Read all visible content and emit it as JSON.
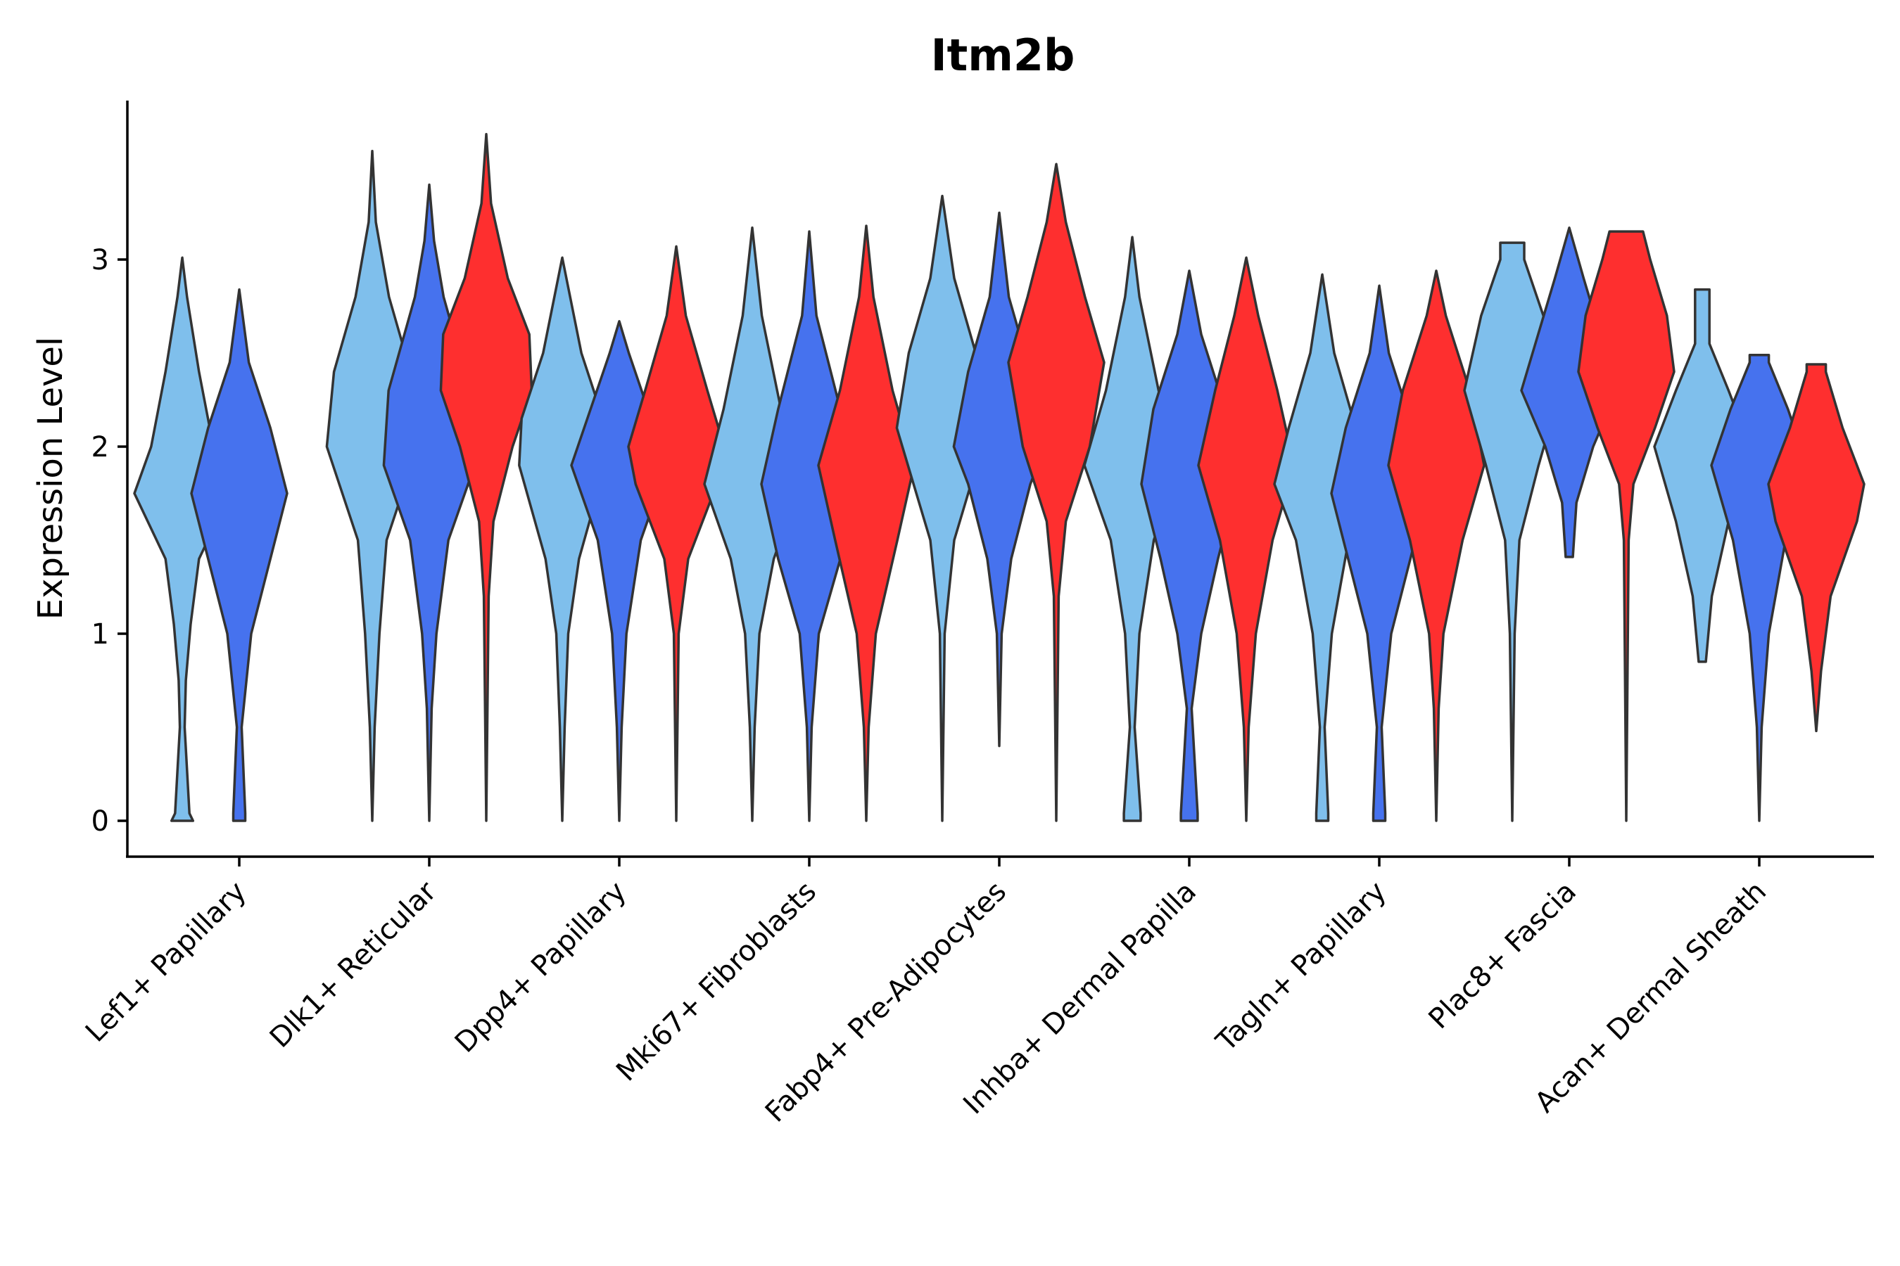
{
  "chart_data": {
    "type": "violin",
    "title": "Itm2b",
    "xlabel": "",
    "ylabel": "Expression Level",
    "ylim": [
      -0.18,
      3.85
    ],
    "yticks": [
      0,
      1,
      2,
      3
    ],
    "grid": false,
    "legend": "none",
    "series_colors": [
      "#7fbfec",
      "#4672ee",
      "#fe2f2f"
    ],
    "categories": [
      "Lef1+ Papillary",
      "Dlk1+ Reticular",
      "Dpp4+ Papillary",
      "Mki67+ Fibroblasts",
      "Fabp4+ Pre-Adipocytes",
      "Inhba+ Dermal Papilla",
      "Tagln+ Papillary",
      "Plac8+ Fascia",
      "Acan+ Dermal Sheath"
    ],
    "violins": [
      {
        "category": "Lef1+ Papillary",
        "series": 0,
        "min": 0,
        "max": 3.01,
        "peak": 1.75,
        "zero_blob": true,
        "profile": [
          [
            0,
            0.09
          ],
          [
            0.04,
            0.06
          ],
          [
            0.5,
            0.02
          ],
          [
            0.75,
            0.03
          ],
          [
            1.05,
            0.07
          ],
          [
            1.4,
            0.14
          ],
          [
            1.75,
            0.4
          ],
          [
            2.0,
            0.26
          ],
          [
            2.4,
            0.14
          ],
          [
            2.8,
            0.04
          ],
          [
            3.01,
            0
          ]
        ]
      },
      {
        "category": "Lef1+ Papillary",
        "series": 1,
        "min": 0,
        "max": 2.84,
        "peak": 1.75,
        "zero_blob": true,
        "profile": [
          [
            0,
            0.05
          ],
          [
            0.04,
            0.05
          ],
          [
            0.5,
            0.02
          ],
          [
            1.0,
            0.1
          ],
          [
            1.4,
            0.26
          ],
          [
            1.75,
            0.4
          ],
          [
            2.1,
            0.26
          ],
          [
            2.45,
            0.08
          ],
          [
            2.84,
            0
          ]
        ]
      },
      {
        "category": "Dlk1+ Reticular",
        "series": 0,
        "min": 0,
        "max": 3.58,
        "peak": 2.0,
        "zero_blob": false,
        "profile": [
          [
            0,
            0
          ],
          [
            0.5,
            0.02
          ],
          [
            1.0,
            0.06
          ],
          [
            1.5,
            0.12
          ],
          [
            2.0,
            0.38
          ],
          [
            2.4,
            0.32
          ],
          [
            2.8,
            0.14
          ],
          [
            3.2,
            0.03
          ],
          [
            3.58,
            0
          ]
        ]
      },
      {
        "category": "Dlk1+ Reticular",
        "series": 1,
        "min": 0,
        "max": 3.4,
        "peak": 1.9,
        "zero_blob": false,
        "profile": [
          [
            0,
            0
          ],
          [
            0.6,
            0.02
          ],
          [
            1.0,
            0.06
          ],
          [
            1.5,
            0.16
          ],
          [
            1.9,
            0.38
          ],
          [
            2.3,
            0.34
          ],
          [
            2.8,
            0.12
          ],
          [
            3.1,
            0.04
          ],
          [
            3.4,
            0
          ]
        ]
      },
      {
        "category": "Dlk1+ Reticular",
        "series": 2,
        "min": 0,
        "max": 3.67,
        "peak": 2.4,
        "zero_blob": false,
        "profile": [
          [
            0,
            0
          ],
          [
            1.2,
            0.02
          ],
          [
            1.6,
            0.06
          ],
          [
            2.0,
            0.22
          ],
          [
            2.3,
            0.38
          ],
          [
            2.6,
            0.36
          ],
          [
            2.9,
            0.18
          ],
          [
            3.3,
            0.04
          ],
          [
            3.67,
            0
          ]
        ]
      },
      {
        "category": "Dpp4+ Papillary",
        "series": 0,
        "min": 0,
        "max": 3.01,
        "peak": 1.9,
        "zero_blob": false,
        "profile": [
          [
            0,
            0
          ],
          [
            0.5,
            0.02
          ],
          [
            1.0,
            0.05
          ],
          [
            1.4,
            0.14
          ],
          [
            1.9,
            0.36
          ],
          [
            2.15,
            0.34
          ],
          [
            2.5,
            0.16
          ],
          [
            3.01,
            0
          ]
        ]
      },
      {
        "category": "Dpp4+ Papillary",
        "series": 1,
        "min": 0,
        "max": 2.67,
        "peak": 1.9,
        "zero_blob": false,
        "profile": [
          [
            0,
            0
          ],
          [
            0.5,
            0.02
          ],
          [
            1.0,
            0.06
          ],
          [
            1.5,
            0.18
          ],
          [
            1.9,
            0.4
          ],
          [
            2.2,
            0.24
          ],
          [
            2.5,
            0.08
          ],
          [
            2.67,
            0
          ]
        ]
      },
      {
        "category": "Dpp4+ Papillary",
        "series": 2,
        "min": 0,
        "max": 3.07,
        "peak": 2.0,
        "zero_blob": false,
        "profile": [
          [
            0,
            0
          ],
          [
            1.0,
            0.02
          ],
          [
            1.4,
            0.1
          ],
          [
            1.8,
            0.34
          ],
          [
            2.0,
            0.4
          ],
          [
            2.3,
            0.26
          ],
          [
            2.7,
            0.08
          ],
          [
            3.07,
            0
          ]
        ]
      },
      {
        "category": "Mki67+ Fibroblasts",
        "series": 0,
        "min": 0,
        "max": 3.17,
        "peak": 1.8,
        "zero_blob": false,
        "profile": [
          [
            0,
            0
          ],
          [
            0.5,
            0.02
          ],
          [
            1.0,
            0.06
          ],
          [
            1.4,
            0.18
          ],
          [
            1.8,
            0.4
          ],
          [
            2.2,
            0.24
          ],
          [
            2.7,
            0.08
          ],
          [
            3.17,
            0
          ]
        ]
      },
      {
        "category": "Mki67+ Fibroblasts",
        "series": 1,
        "min": 0,
        "max": 3.15,
        "peak": 1.8,
        "zero_blob": false,
        "profile": [
          [
            0,
            0
          ],
          [
            0.5,
            0.02
          ],
          [
            1.0,
            0.08
          ],
          [
            1.4,
            0.26
          ],
          [
            1.8,
            0.4
          ],
          [
            2.2,
            0.26
          ],
          [
            2.7,
            0.06
          ],
          [
            3.15,
            0
          ]
        ]
      },
      {
        "category": "Mki67+ Fibroblasts",
        "series": 2,
        "min": 0,
        "max": 3.18,
        "peak": 1.9,
        "zero_blob": false,
        "profile": [
          [
            0,
            0
          ],
          [
            0.5,
            0.02
          ],
          [
            1.0,
            0.08
          ],
          [
            1.5,
            0.26
          ],
          [
            1.9,
            0.4
          ],
          [
            2.3,
            0.22
          ],
          [
            2.8,
            0.06
          ],
          [
            3.18,
            0
          ]
        ]
      },
      {
        "category": "Fabp4+ Pre-Adipocytes",
        "series": 0,
        "min": 0,
        "max": 3.34,
        "peak": 2.1,
        "zero_blob": false,
        "profile": [
          [
            0,
            0
          ],
          [
            1.0,
            0.02
          ],
          [
            1.5,
            0.1
          ],
          [
            1.8,
            0.24
          ],
          [
            2.1,
            0.38
          ],
          [
            2.5,
            0.28
          ],
          [
            2.9,
            0.1
          ],
          [
            3.34,
            0
          ]
        ]
      },
      {
        "category": "Fabp4+ Pre-Adipocytes",
        "series": 1,
        "min": 0.4,
        "max": 3.25,
        "peak": 2.0,
        "zero_blob": false,
        "profile": [
          [
            0.4,
            0
          ],
          [
            1.0,
            0.02
          ],
          [
            1.4,
            0.1
          ],
          [
            1.8,
            0.26
          ],
          [
            2.0,
            0.38
          ],
          [
            2.4,
            0.26
          ],
          [
            2.8,
            0.08
          ],
          [
            3.25,
            0
          ]
        ]
      },
      {
        "category": "Fabp4+ Pre-Adipocytes",
        "series": 2,
        "min": 0,
        "max": 3.51,
        "peak": 2.45,
        "zero_blob": false,
        "profile": [
          [
            0,
            0
          ],
          [
            1.2,
            0.02
          ],
          [
            1.6,
            0.08
          ],
          [
            2.0,
            0.28
          ],
          [
            2.45,
            0.4
          ],
          [
            2.8,
            0.24
          ],
          [
            3.2,
            0.08
          ],
          [
            3.51,
            0
          ]
        ]
      },
      {
        "category": "Inhba+ Dermal Papilla",
        "series": 0,
        "min": 0,
        "max": 3.12,
        "peak": 1.9,
        "zero_blob": true,
        "profile": [
          [
            0,
            0.07
          ],
          [
            0.04,
            0.07
          ],
          [
            0.5,
            0.02
          ],
          [
            1.0,
            0.06
          ],
          [
            1.5,
            0.18
          ],
          [
            1.9,
            0.4
          ],
          [
            2.3,
            0.22
          ],
          [
            2.8,
            0.06
          ],
          [
            3.12,
            0
          ]
        ]
      },
      {
        "category": "Inhba+ Dermal Papilla",
        "series": 1,
        "min": 0,
        "max": 2.94,
        "peak": 1.8,
        "zero_blob": true,
        "profile": [
          [
            0,
            0.07
          ],
          [
            0.04,
            0.07
          ],
          [
            0.6,
            0.02
          ],
          [
            1.0,
            0.1
          ],
          [
            1.4,
            0.24
          ],
          [
            1.8,
            0.4
          ],
          [
            2.2,
            0.3
          ],
          [
            2.6,
            0.1
          ],
          [
            2.94,
            0
          ]
        ]
      },
      {
        "category": "Inhba+ Dermal Papilla",
        "series": 2,
        "min": 0,
        "max": 3.01,
        "peak": 1.9,
        "zero_blob": false,
        "profile": [
          [
            0,
            0
          ],
          [
            0.5,
            0.02
          ],
          [
            1.0,
            0.08
          ],
          [
            1.5,
            0.22
          ],
          [
            1.9,
            0.4
          ],
          [
            2.3,
            0.26
          ],
          [
            2.7,
            0.1
          ],
          [
            3.01,
            0
          ]
        ]
      },
      {
        "category": "Tagln+ Papillary",
        "series": 0,
        "min": 0,
        "max": 2.92,
        "peak": 1.8,
        "zero_blob": true,
        "profile": [
          [
            0,
            0.05
          ],
          [
            0.04,
            0.05
          ],
          [
            0.5,
            0.02
          ],
          [
            1.0,
            0.08
          ],
          [
            1.5,
            0.22
          ],
          [
            1.8,
            0.4
          ],
          [
            2.1,
            0.28
          ],
          [
            2.5,
            0.1
          ],
          [
            2.92,
            0
          ]
        ]
      },
      {
        "category": "Tagln+ Papillary",
        "series": 1,
        "min": 0,
        "max": 2.86,
        "peak": 1.75,
        "zero_blob": true,
        "profile": [
          [
            0,
            0.05
          ],
          [
            0.04,
            0.05
          ],
          [
            0.5,
            0.02
          ],
          [
            1.0,
            0.1
          ],
          [
            1.4,
            0.26
          ],
          [
            1.75,
            0.4
          ],
          [
            2.1,
            0.28
          ],
          [
            2.5,
            0.08
          ],
          [
            2.86,
            0
          ]
        ]
      },
      {
        "category": "Tagln+ Papillary",
        "series": 2,
        "min": 0,
        "max": 2.94,
        "peak": 1.9,
        "zero_blob": false,
        "profile": [
          [
            0,
            0
          ],
          [
            0.6,
            0.02
          ],
          [
            1.0,
            0.06
          ],
          [
            1.5,
            0.22
          ],
          [
            1.9,
            0.4
          ],
          [
            2.3,
            0.28
          ],
          [
            2.7,
            0.08
          ],
          [
            2.94,
            0
          ]
        ]
      },
      {
        "category": "Plac8+ Fascia",
        "series": 0,
        "min": 0,
        "max": 3.09,
        "peak": 2.3,
        "zero_blob": false,
        "profile": [
          [
            0,
            0
          ],
          [
            1.0,
            0.02
          ],
          [
            1.5,
            0.06
          ],
          [
            1.9,
            0.22
          ],
          [
            2.3,
            0.4
          ],
          [
            2.7,
            0.26
          ],
          [
            3.0,
            0.1
          ],
          [
            3.09,
            0.1
          ]
        ]
      },
      {
        "category": "Plac8+ Fascia",
        "series": 1,
        "min": 1.41,
        "max": 3.17,
        "peak": 2.3,
        "zero_blob": false,
        "profile": [
          [
            1.41,
            0.03
          ],
          [
            1.7,
            0.06
          ],
          [
            2.0,
            0.2
          ],
          [
            2.3,
            0.4
          ],
          [
            2.6,
            0.26
          ],
          [
            2.9,
            0.12
          ],
          [
            3.17,
            0
          ]
        ]
      },
      {
        "category": "Plac8+ Fascia",
        "series": 2,
        "min": 0,
        "max": 3.15,
        "peak": 2.4,
        "zero_blob": false,
        "profile": [
          [
            0,
            0
          ],
          [
            1.5,
            0.02
          ],
          [
            1.8,
            0.06
          ],
          [
            2.1,
            0.24
          ],
          [
            2.4,
            0.4
          ],
          [
            2.7,
            0.34
          ],
          [
            3.0,
            0.2
          ],
          [
            3.15,
            0.14
          ]
        ]
      },
      {
        "category": "Acan+ Dermal Sheath",
        "series": 0,
        "min": 0.85,
        "max": 2.84,
        "peak": 2.0,
        "zero_blob": false,
        "profile": [
          [
            0.85,
            0.03
          ],
          [
            1.2,
            0.08
          ],
          [
            1.6,
            0.22
          ],
          [
            2.0,
            0.4
          ],
          [
            2.3,
            0.22
          ],
          [
            2.55,
            0.06
          ],
          [
            2.84,
            0.06
          ]
        ]
      },
      {
        "category": "Acan+ Dermal Sheath",
        "series": 1,
        "min": 0,
        "max": 2.49,
        "peak": 1.9,
        "zero_blob": false,
        "profile": [
          [
            0,
            0
          ],
          [
            0.5,
            0.02
          ],
          [
            1.0,
            0.08
          ],
          [
            1.5,
            0.22
          ],
          [
            1.9,
            0.4
          ],
          [
            2.2,
            0.24
          ],
          [
            2.45,
            0.08
          ],
          [
            2.49,
            0.08
          ]
        ]
      },
      {
        "category": "Acan+ Dermal Sheath",
        "series": 2,
        "min": 0.48,
        "max": 2.44,
        "peak": 1.8,
        "zero_blob": false,
        "profile": [
          [
            0.48,
            0
          ],
          [
            0.8,
            0.04
          ],
          [
            1.2,
            0.12
          ],
          [
            1.6,
            0.34
          ],
          [
            1.8,
            0.4
          ],
          [
            2.1,
            0.22
          ],
          [
            2.4,
            0.08
          ],
          [
            2.44,
            0.08
          ]
        ]
      }
    ]
  }
}
